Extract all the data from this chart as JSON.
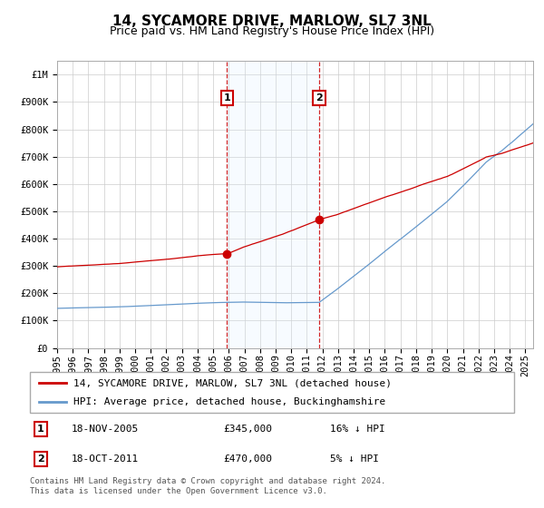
{
  "title": "14, SYCAMORE DRIVE, MARLOW, SL7 3NL",
  "subtitle": "Price paid vs. HM Land Registry's House Price Index (HPI)",
  "background_color": "#ffffff",
  "plot_bg_color": "#ffffff",
  "grid_color": "#cccccc",
  "red_line_color": "#cc0000",
  "blue_line_color": "#6699cc",
  "highlight_fill": "#ddeeff",
  "sale1_date_num": 2005.88,
  "sale1_price": 345000,
  "sale2_date_num": 2011.79,
  "sale2_price": 470000,
  "ylim": [
    0,
    1050000
  ],
  "xlim": [
    1995,
    2025.5
  ],
  "ylabel_ticks": [
    0,
    100000,
    200000,
    300000,
    400000,
    500000,
    600000,
    700000,
    800000,
    900000,
    1000000
  ],
  "ylabel_labels": [
    "£0",
    "£100K",
    "£200K",
    "£300K",
    "£400K",
    "£500K",
    "£600K",
    "£700K",
    "£800K",
    "£900K",
    "£1M"
  ],
  "xtick_years": [
    1995,
    1996,
    1997,
    1998,
    1999,
    2000,
    2001,
    2002,
    2003,
    2004,
    2005,
    2006,
    2007,
    2008,
    2009,
    2010,
    2011,
    2012,
    2013,
    2014,
    2015,
    2016,
    2017,
    2018,
    2019,
    2020,
    2021,
    2022,
    2023,
    2024,
    2025
  ],
  "legend_red_label": "14, SYCAMORE DRIVE, MARLOW, SL7 3NL (detached house)",
  "legend_blue_label": "HPI: Average price, detached house, Buckinghamshire",
  "footer": "Contains HM Land Registry data © Crown copyright and database right 2024.\nThis data is licensed under the Open Government Licence v3.0.",
  "title_fontsize": 11,
  "subtitle_fontsize": 9,
  "tick_fontsize": 7.5,
  "legend_fontsize": 8,
  "footer_fontsize": 6.5
}
